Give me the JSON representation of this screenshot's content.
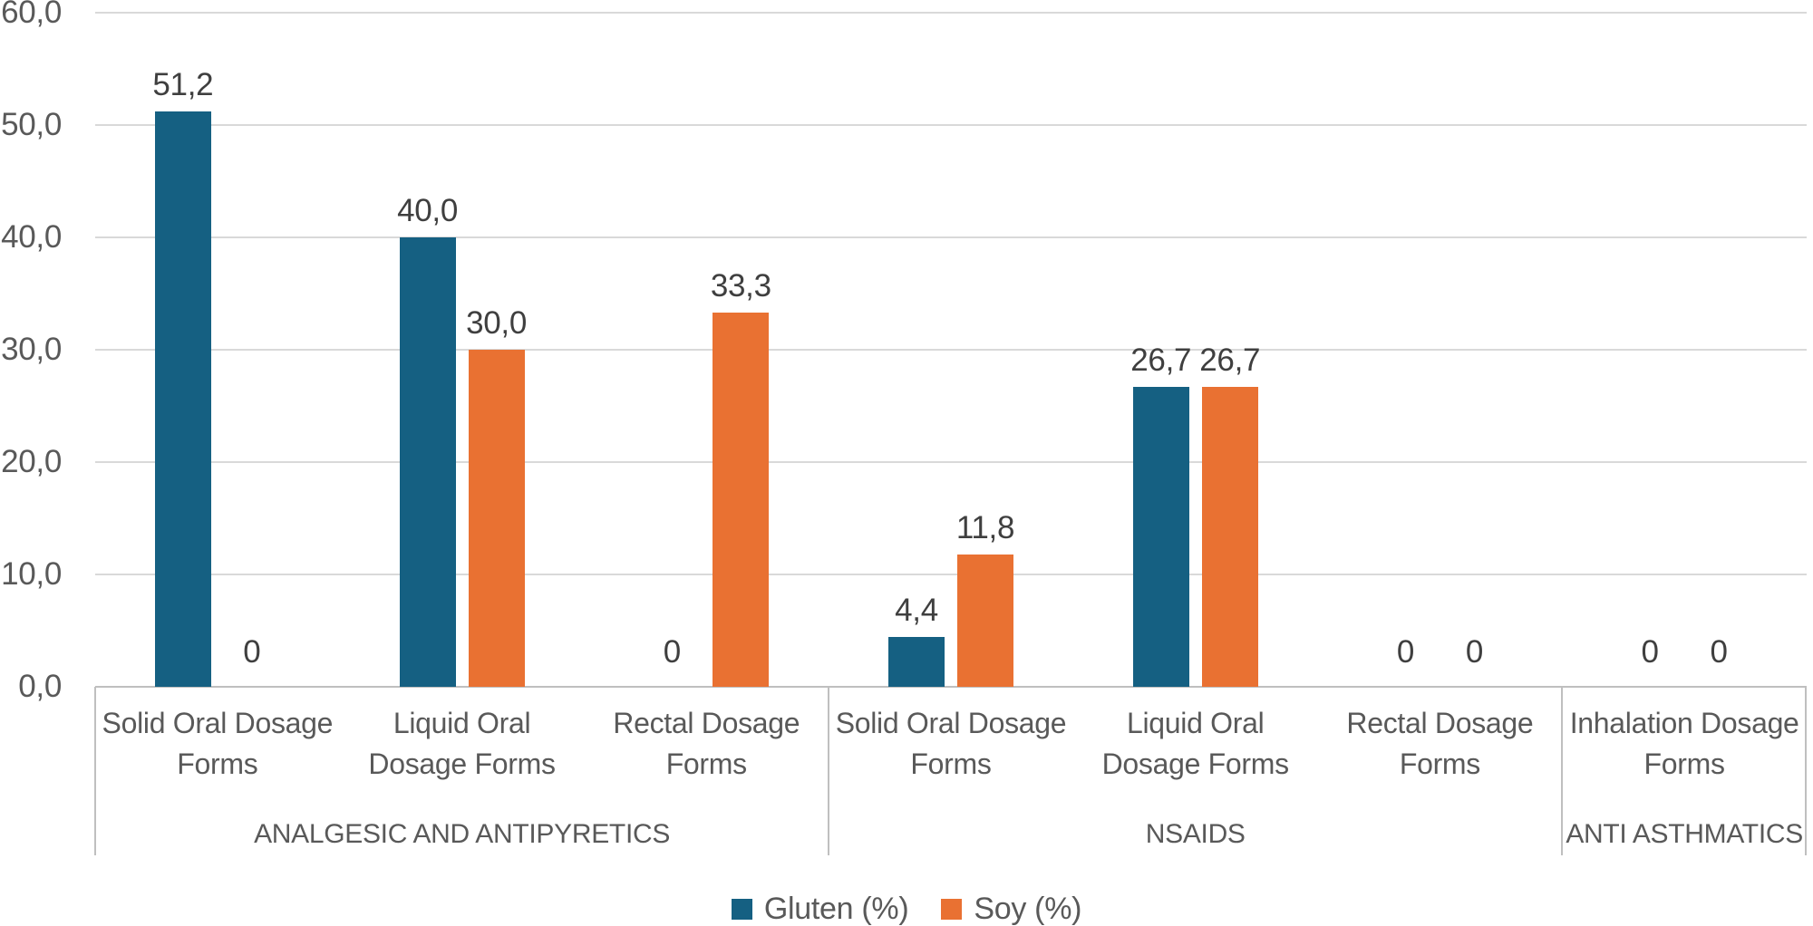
{
  "chart_data": {
    "type": "bar",
    "title": "",
    "xlabel": "",
    "ylabel": "",
    "grid": true,
    "legend_position": "bottom",
    "decimal_separator": ",",
    "y_axis": {
      "min": 0,
      "max": 60,
      "ticks": [
        {
          "value": 60,
          "label": "60,0"
        },
        {
          "value": 50,
          "label": "50,0"
        },
        {
          "value": 40,
          "label": "40,0"
        },
        {
          "value": 30,
          "label": "30,0"
        },
        {
          "value": 20,
          "label": "20,0"
        },
        {
          "value": 10,
          "label": "10,0"
        },
        {
          "value": 0,
          "label": "0,0"
        }
      ]
    },
    "groups": [
      {
        "label": "ANALGESIC AND ANTIPYRETICS",
        "categories": [
          [
            "Solid Oral Dosage",
            "Forms"
          ],
          [
            "Liquid Oral",
            "Dosage Forms"
          ],
          [
            "Rectal Dosage",
            "Forms"
          ]
        ]
      },
      {
        "label": "NSAIDS",
        "categories": [
          [
            "Solid Oral Dosage",
            "Forms"
          ],
          [
            "Liquid Oral",
            "Dosage Forms"
          ],
          [
            "Rectal Dosage",
            "Forms"
          ]
        ]
      },
      {
        "label": "ANTI ASTHMATICS",
        "categories": [
          [
            "Inhalation Dosage",
            "Forms"
          ]
        ]
      }
    ],
    "series": [
      {
        "name": "Gluten (%)",
        "color": "#156082",
        "values": [
          51.2,
          40.0,
          0,
          4.4,
          26.7,
          0,
          0
        ],
        "labels": [
          "51,2",
          "40,0",
          "0",
          "4,4",
          "26,7",
          "0",
          "0"
        ]
      },
      {
        "name": "Soy (%)",
        "color": "#E97132",
        "values": [
          0,
          30.0,
          33.3,
          11.8,
          26.7,
          0,
          0
        ],
        "labels": [
          "0",
          "30,0",
          "33,3",
          "11,8",
          "26,7",
          "0",
          "0"
        ]
      }
    ],
    "colors": {
      "gridline": "#D9D9D9",
      "axis_line": "#BFBFBF",
      "axis_text": "#595959",
      "data_label_text": "#3F3F3F",
      "background": "#FFFFFF"
    }
  }
}
